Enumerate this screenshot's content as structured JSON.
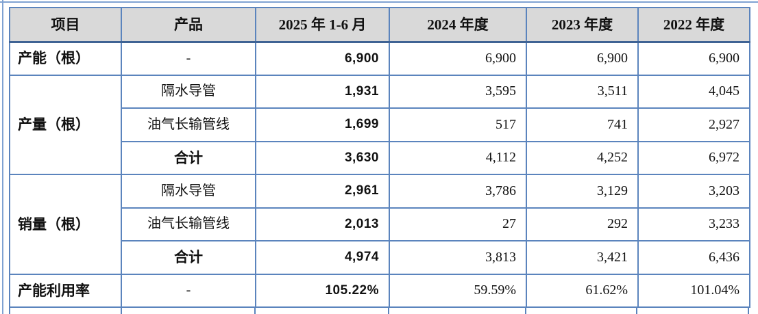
{
  "table": {
    "border_color": "#5b84bd",
    "header_background": "#d9d9d9",
    "header": {
      "item": "项目",
      "product": "产品",
      "p2025": "2025 年 1-6 月",
      "y2024": "2024 年度",
      "y2023": "2023 年度",
      "y2022": "2022 年度"
    },
    "rows": {
      "capacity": {
        "label": "产能（根）",
        "product": "-",
        "v2025": "6,900",
        "v2024": "6,900",
        "v2023": "6,900",
        "v2022": "6,900"
      },
      "production": {
        "label": "产量（根）",
        "items": [
          {
            "product": "隔水导管",
            "v2025": "1,931",
            "v2024": "3,595",
            "v2023": "3,511",
            "v2022": "4,045"
          },
          {
            "product": "油气长输管线",
            "v2025": "1,699",
            "v2024": "517",
            "v2023": "741",
            "v2022": "2,927"
          },
          {
            "product": "合计",
            "v2025": "3,630",
            "v2024": "4,112",
            "v2023": "4,252",
            "v2022": "6,972"
          }
        ]
      },
      "sales": {
        "label": "销量（根）",
        "items": [
          {
            "product": "隔水导管",
            "v2025": "2,961",
            "v2024": "3,786",
            "v2023": "3,129",
            "v2022": "3,203"
          },
          {
            "product": "油气长输管线",
            "v2025": "2,013",
            "v2024": "27",
            "v2023": "292",
            "v2022": "3,233"
          },
          {
            "product": "合计",
            "v2025": "4,974",
            "v2024": "3,813",
            "v2023": "3,421",
            "v2022": "6,436"
          }
        ]
      },
      "utilization": {
        "label": "产能利用率",
        "product": "-",
        "v2025": "105.22%",
        "v2024": "59.59%",
        "v2023": "61.62%",
        "v2022": "101.04%"
      }
    }
  }
}
